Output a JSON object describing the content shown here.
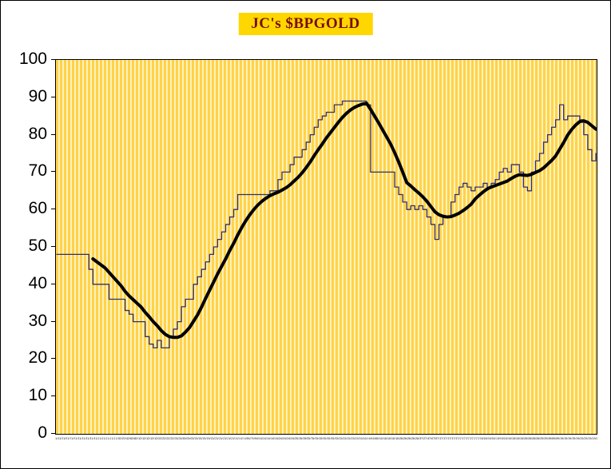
{
  "chart_data": {
    "type": "line",
    "title": "JC's $BPGOLD",
    "xlabel": "",
    "ylabel": "",
    "ylim": [
      0,
      100
    ],
    "y_ticks": [
      0,
      10,
      20,
      30,
      40,
      50,
      60,
      70,
      80,
      90,
      100
    ],
    "grid": "vertical-stripes",
    "legend": "none",
    "colors": {
      "plot_bg": "#ffd24a",
      "stripe": "#fff3bb",
      "indicator_line": "#2f2f6f",
      "average_line": "#000000",
      "title_bg": "#ffd700",
      "title_text": "#7a0d0d",
      "frame_bg": "#ffffff",
      "axis_text": "#000000"
    },
    "x_labels": [
      "1/1",
      "1/3",
      "1/5",
      "1/7",
      "1/9",
      "1/11",
      "1/13",
      "1/15",
      "1/17",
      "1/19",
      "1/21",
      "1/23",
      "1/25",
      "1/27",
      "1/29",
      "1/31",
      "2/2",
      "2/4",
      "2/6",
      "2/8",
      "2/10",
      "2/12",
      "2/14",
      "2/16",
      "2/18",
      "2/20",
      "2/22",
      "2/24",
      "2/26",
      "2/28",
      "3/2",
      "3/4",
      "3/6",
      "3/8",
      "3/10",
      "3/12",
      "3/14",
      "3/16",
      "3/18",
      "3/20",
      "3/22",
      "3/24",
      "3/26",
      "3/28",
      "3/30",
      "4/1",
      "4/3",
      "4/5",
      "4/7",
      "4/9",
      "4/11",
      "4/13",
      "4/15",
      "4/17",
      "4/19",
      "4/21",
      "4/23",
      "4/25",
      "4/27",
      "4/29",
      "5/1",
      "5/3",
      "5/5",
      "5/7",
      "5/9",
      "5/11",
      "5/13",
      "5/15",
      "5/17",
      "5/19",
      "5/21",
      "5/23",
      "5/25",
      "5/27",
      "5/29",
      "5/31",
      "6/2",
      "6/4",
      "6/6",
      "6/8",
      "6/10",
      "6/12",
      "6/14",
      "6/16",
      "6/18",
      "6/20",
      "6/22",
      "6/24",
      "6/26",
      "6/28",
      "6/30",
      "7/2",
      "7/4",
      "7/6",
      "7/8",
      "7/10",
      "7/12",
      "7/14",
      "7/16",
      "7/18",
      "7/20",
      "7/22",
      "7/24",
      "7/26",
      "7/28",
      "7/30",
      "8/1",
      "8/3",
      "8/5",
      "8/7",
      "8/9",
      "8/11",
      "8/13",
      "8/15",
      "8/17",
      "8/19",
      "8/21",
      "8/23",
      "8/25",
      "8/27",
      "8/29",
      "9/2",
      "9/4",
      "9/6",
      "9/8",
      "9/10",
      "9/12",
      "9/14",
      "9/16",
      "9/18",
      "9/20",
      "9/22",
      "9/24",
      "9/26",
      "9/28"
    ],
    "series": [
      {
        "name": "$BPGOLD",
        "style": "step",
        "color": "#2f2f6f",
        "stroke_width": 1.3,
        "values": [
          48,
          48,
          48,
          48,
          48,
          48,
          48,
          48,
          44,
          40,
          40,
          40,
          40,
          36,
          36,
          36,
          36,
          33,
          32,
          30,
          30,
          30,
          26,
          24,
          23,
          25,
          23,
          23,
          26,
          28,
          30,
          34,
          36,
          36,
          40,
          42,
          44,
          46,
          48,
          50,
          52,
          54,
          56,
          58,
          60,
          64,
          64,
          64,
          64,
          64,
          64,
          64,
          64,
          65,
          65,
          68,
          70,
          70,
          72,
          74,
          74,
          76,
          78,
          80,
          82,
          84,
          85,
          86,
          86,
          88,
          88,
          89,
          89,
          89,
          89,
          89,
          89,
          88,
          70,
          70,
          70,
          70,
          70,
          70,
          66,
          64,
          62,
          60,
          61,
          60,
          61,
          60,
          58,
          56,
          52,
          56,
          58,
          58,
          62,
          64,
          66,
          67,
          66,
          65,
          66,
          66,
          67,
          66,
          67,
          68,
          70,
          71,
          70,
          72,
          72,
          70,
          66,
          65,
          70,
          73,
          75,
          78,
          80,
          82,
          84,
          88,
          84,
          85,
          85,
          85,
          84,
          80,
          76,
          73,
          75
        ]
      },
      {
        "name": "10-period moving average",
        "style": "smooth",
        "color": "#000000",
        "stroke_width": 4,
        "derived_from": "$BPGOLD",
        "period": 10
      }
    ]
  }
}
